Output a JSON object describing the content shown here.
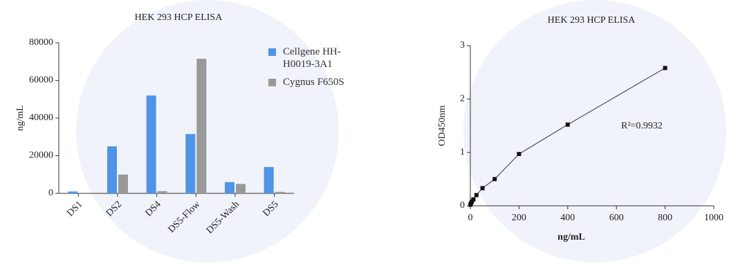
{
  "chart_data": [
    {
      "type": "bar",
      "title": "HEK 293 HCP ELISA",
      "ylabel": "ng/mL",
      "categories": [
        "DS1",
        "DS2",
        "DS4",
        "DS5-Flow",
        "DS5-Wash",
        "DS5"
      ],
      "series": [
        {
          "name": "Cellgene HH-H0019-3A1",
          "color": "#4f94e6",
          "values": [
            1000,
            25000,
            52000,
            31500,
            6000,
            14000
          ]
        },
        {
          "name": "Cygnus F650S",
          "color": "#999999",
          "values": [
            0,
            10000,
            1200,
            71500,
            5000,
            800
          ]
        }
      ],
      "ylim": [
        0,
        80000
      ],
      "yticks": [
        0,
        20000,
        40000,
        60000,
        80000
      ]
    },
    {
      "type": "scatter",
      "title": "HEK 293 HCP ELISA",
      "xlabel": "ng/mL",
      "ylabel": "OD450nm",
      "annotation": "R²=0.9932",
      "x": [
        0,
        3.125,
        6.25,
        12.5,
        25,
        50,
        100,
        200,
        400,
        800
      ],
      "values": [
        0.02,
        0.05,
        0.08,
        0.12,
        0.2,
        0.33,
        0.5,
        0.97,
        1.52,
        2.58
      ],
      "color": "#111111",
      "fit": true,
      "xlim": [
        0,
        1000
      ],
      "xticks": [
        0,
        200,
        400,
        600,
        800,
        1000
      ],
      "ylim": [
        0,
        3
      ],
      "yticks": [
        0,
        1,
        2,
        3
      ]
    }
  ]
}
